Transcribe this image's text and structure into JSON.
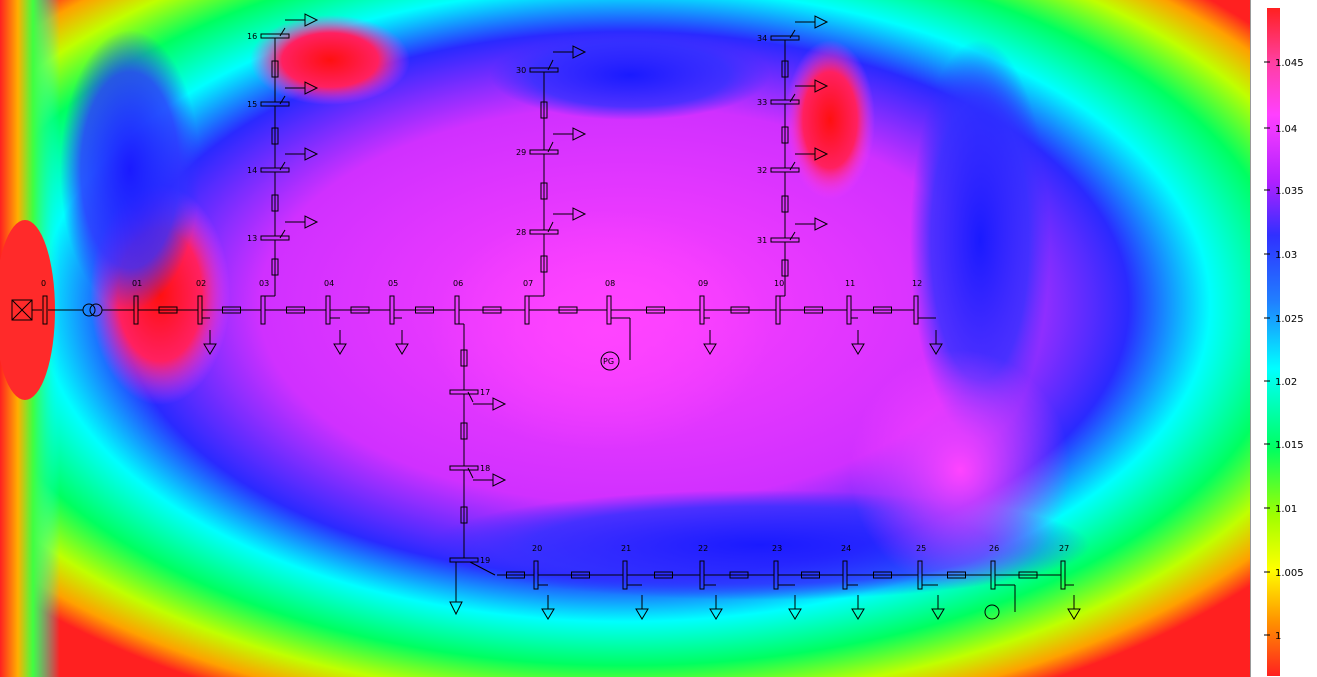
{
  "legend": {
    "ticks": [
      "1.045",
      "1.04",
      "1.035",
      "1.03",
      "1.025",
      "1.02",
      "1.015",
      "1.01",
      "1.005",
      "1"
    ],
    "colors": [
      "#ff2020",
      "#ff3fa0",
      "#ff40ff",
      "#c020ff",
      "#3030ff",
      "#2080ff",
      "#00ffff",
      "#00ff80",
      "#60ff00",
      "#ffff00",
      "#ff8000",
      "#ff2020"
    ]
  },
  "buses": {
    "b00": "0",
    "b01": "01",
    "b02": "02",
    "b03": "03",
    "b04": "04",
    "b05": "05",
    "b06": "06",
    "b07": "07",
    "b08": "08",
    "b09": "09",
    "b10": "10",
    "b11": "11",
    "b12": "12",
    "b13": "13",
    "b14": "14",
    "b15": "15",
    "b16": "16",
    "b17": "17",
    "b18": "18",
    "b19": "19",
    "b20": "20",
    "b21": "21",
    "b22": "22",
    "b23": "23",
    "b24": "24",
    "b25": "25",
    "b26": "26",
    "b27": "27",
    "b28": "28",
    "b29": "29",
    "b30": "30",
    "b31": "31",
    "b32": "32",
    "b33": "33",
    "b34": "34"
  },
  "generator": {
    "label": "PG"
  }
}
